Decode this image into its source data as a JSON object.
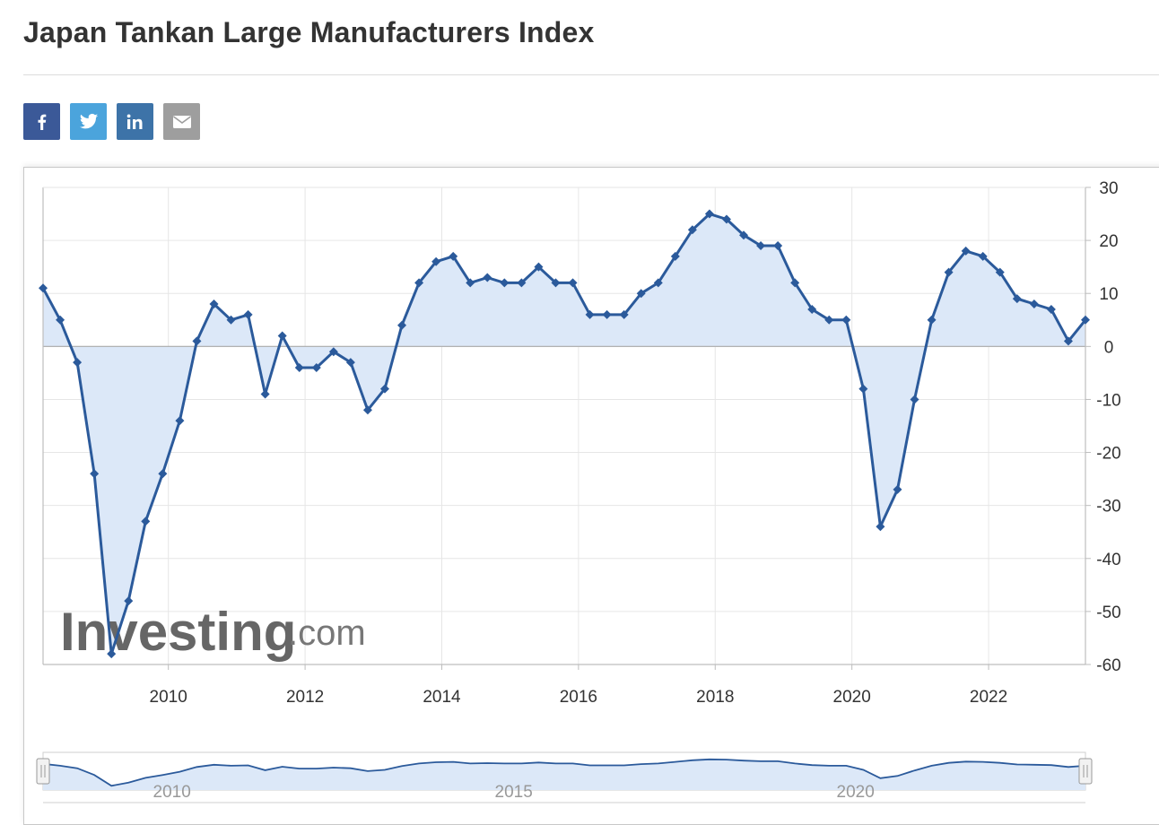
{
  "page": {
    "title": "Japan Tankan Large Manufacturers Index"
  },
  "share": [
    {
      "name": "facebook",
      "icon": "facebook-icon",
      "color": "#3b5998",
      "glyph": "f"
    },
    {
      "name": "twitter",
      "icon": "twitter-icon",
      "color": "#4ba4dc",
      "glyph": ""
    },
    {
      "name": "linkedin",
      "icon": "linkedin-icon",
      "color": "#3d73a8",
      "glyph": "in"
    },
    {
      "name": "email",
      "icon": "email-icon",
      "color": "#9e9e9e",
      "glyph": ""
    }
  ],
  "colors": {
    "line": "#2b5a9b",
    "area": "#dce8f8",
    "grid": "#e6e6e6",
    "zero_line": "#aaaaaa",
    "axis": "#bdbdbd"
  },
  "watermark": {
    "brand": "Investing",
    "suffix": ".com"
  },
  "chart_data": {
    "type": "area",
    "x": [
      "2008-03",
      "2008-06",
      "2008-09",
      "2008-12",
      "2009-03",
      "2009-06",
      "2009-09",
      "2009-12",
      "2010-03",
      "2010-06",
      "2010-09",
      "2010-12",
      "2011-03",
      "2011-06",
      "2011-09",
      "2011-12",
      "2012-03",
      "2012-06",
      "2012-09",
      "2012-12",
      "2013-03",
      "2013-06",
      "2013-09",
      "2013-12",
      "2014-03",
      "2014-06",
      "2014-09",
      "2014-12",
      "2015-03",
      "2015-06",
      "2015-09",
      "2015-12",
      "2016-03",
      "2016-06",
      "2016-09",
      "2016-12",
      "2017-03",
      "2017-06",
      "2017-09",
      "2017-12",
      "2018-03",
      "2018-06",
      "2018-09",
      "2018-12",
      "2019-03",
      "2019-06",
      "2019-09",
      "2019-12",
      "2020-03",
      "2020-06",
      "2020-09",
      "2020-12",
      "2021-03",
      "2021-06",
      "2021-09",
      "2021-12",
      "2022-03",
      "2022-06",
      "2022-09",
      "2022-12",
      "2023-03",
      "2023-06"
    ],
    "series": [
      {
        "values": [
          11,
          5,
          -3,
          -24,
          -58,
          -48,
          -33,
          -24,
          -14,
          1,
          8,
          5,
          6,
          -9,
          2,
          -4,
          -4,
          -1,
          -3,
          -12,
          -8,
          4,
          12,
          16,
          17,
          12,
          13,
          12,
          12,
          15,
          12,
          12,
          6,
          6,
          6,
          10,
          12,
          17,
          22,
          25,
          24,
          21,
          19,
          19,
          12,
          7,
          5,
          5,
          -8,
          -34,
          -27,
          -10,
          5,
          14,
          18,
          17,
          14,
          9,
          8,
          7,
          1,
          5
        ]
      }
    ],
    "ylim": [
      -60,
      30
    ],
    "yticks": [
      "30",
      "20",
      "10",
      "0",
      "-10",
      "-20",
      "-30",
      "-40",
      "-50",
      "-60"
    ],
    "xticks": [
      "2010",
      "2012",
      "2014",
      "2016",
      "2018",
      "2020",
      "2022"
    ],
    "navigator_ticks": [
      "2010",
      "2015",
      "2020"
    ],
    "grid": true,
    "legend": "none"
  }
}
